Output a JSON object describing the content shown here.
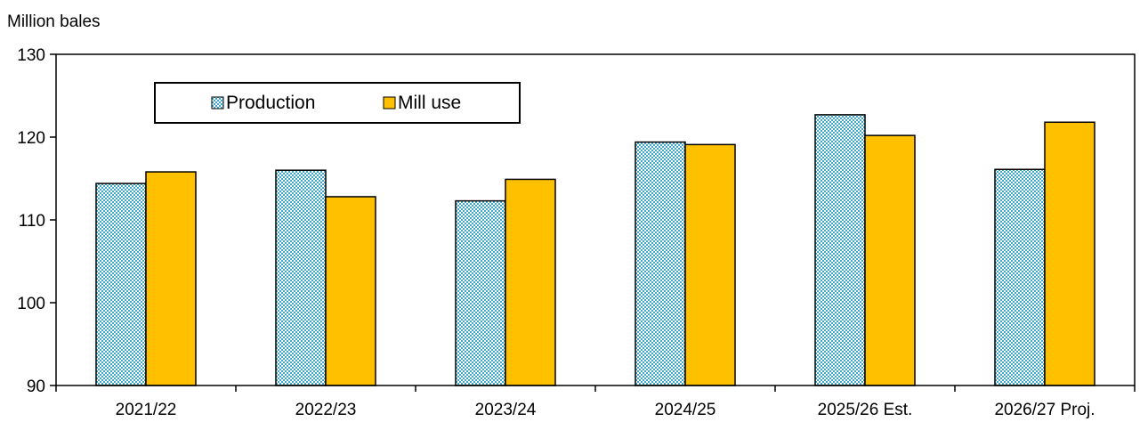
{
  "chart_data": {
    "type": "bar",
    "ylabel": "Million bales",
    "ylim": [
      90,
      130
    ],
    "yticks": [
      90,
      100,
      110,
      120,
      130
    ],
    "grid": false,
    "legend_position": "top-left",
    "categories": [
      "2021/22",
      "2022/23",
      "2023/24",
      "2024/25",
      "2025/26 Est.",
      "2026/27 Proj."
    ],
    "series": [
      {
        "name": "Production",
        "values": [
          114.4,
          116.0,
          112.3,
          119.4,
          122.7,
          116.1
        ],
        "color": "#3ea6c6",
        "pattern": "checkered"
      },
      {
        "name": "Mill use",
        "values": [
          115.8,
          112.8,
          114.9,
          119.1,
          120.2,
          121.8
        ],
        "color": "#ffc000",
        "pattern": "solid"
      }
    ]
  }
}
